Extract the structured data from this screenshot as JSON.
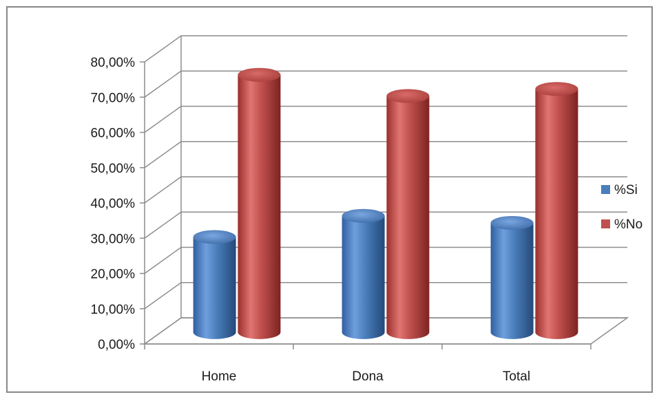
{
  "chart_data": {
    "type": "bar",
    "style": "3d-cylinder",
    "categories": [
      "Home",
      "Dona",
      "Total"
    ],
    "series": [
      {
        "name": "%Si",
        "values": [
          0.27,
          0.33,
          0.31
        ],
        "color": "#4a7ebb"
      },
      {
        "name": "%No",
        "values": [
          0.73,
          0.67,
          0.69
        ],
        "color": "#c0504d"
      }
    ],
    "yticks": [
      "0,00%",
      "10,00%",
      "20,00%",
      "30,00%",
      "40,00%",
      "50,00%",
      "60,00%",
      "70,00%",
      "80,00%"
    ],
    "ylim": [
      0,
      0.8
    ],
    "grid": true,
    "legend_position": "right",
    "title": "",
    "xlabel": "",
    "ylabel": ""
  }
}
